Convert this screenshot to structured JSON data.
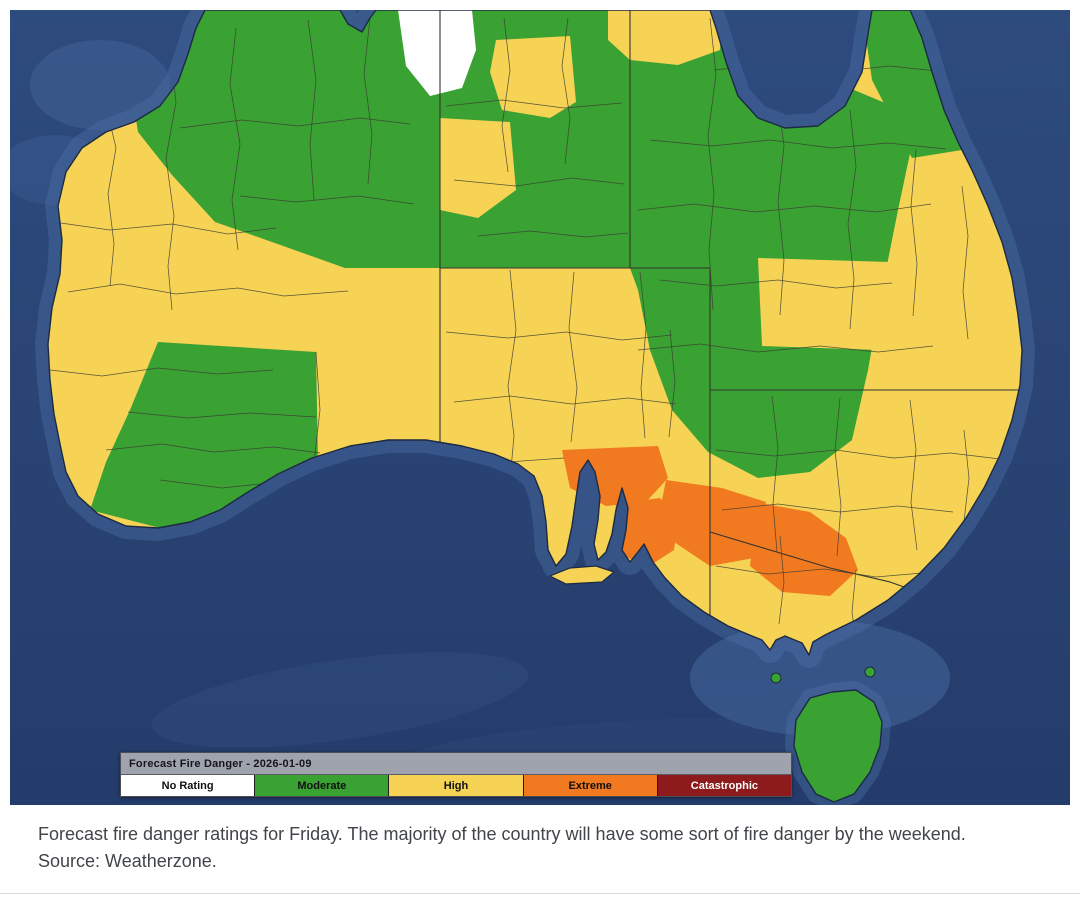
{
  "legend": {
    "title": "Forecast Fire Danger - 2026-01-09",
    "items": [
      {
        "label": "No Rating",
        "color": "#ffffff",
        "text_color": "#101010"
      },
      {
        "label": "Moderate",
        "color": "#3aa133",
        "text_color": "#101010"
      },
      {
        "label": "High",
        "color": "#f6d355",
        "text_color": "#101010"
      },
      {
        "label": "Extreme",
        "color": "#f1791f",
        "text_color": "#101010"
      },
      {
        "label": "Catastrophic",
        "color": "#8e1b1b",
        "text_color": "#ffffff"
      }
    ]
  },
  "caption": "Forecast fire danger ratings for Friday. The majority of the country will have some sort of fire danger by the weekend. Source: Weatherzone.",
  "map": {
    "region": "Australia",
    "date": "2026-01-09",
    "ocean_color": "#2a4274",
    "boundary_color": "#3c3c34",
    "ratings_shown": {
      "no_rating": [
        "small district in the northern interior"
      ],
      "moderate": [
        "Kimberley and northern WA interior",
        "central Northern Territory",
        "western and central Queensland",
        "inland northern NSW",
        "southern WA interior",
        "Cape York Peninsula",
        "Tasmania"
      ],
      "high": [
        "WA west coast",
        "central Australia and most of South Australia",
        "eastern Queensland coast",
        "most of NSW and Victoria"
      ],
      "extreme": [
        "mid-north South Australia and Adelaide region",
        "Murraylands through western Victoria"
      ],
      "catastrophic": []
    }
  }
}
